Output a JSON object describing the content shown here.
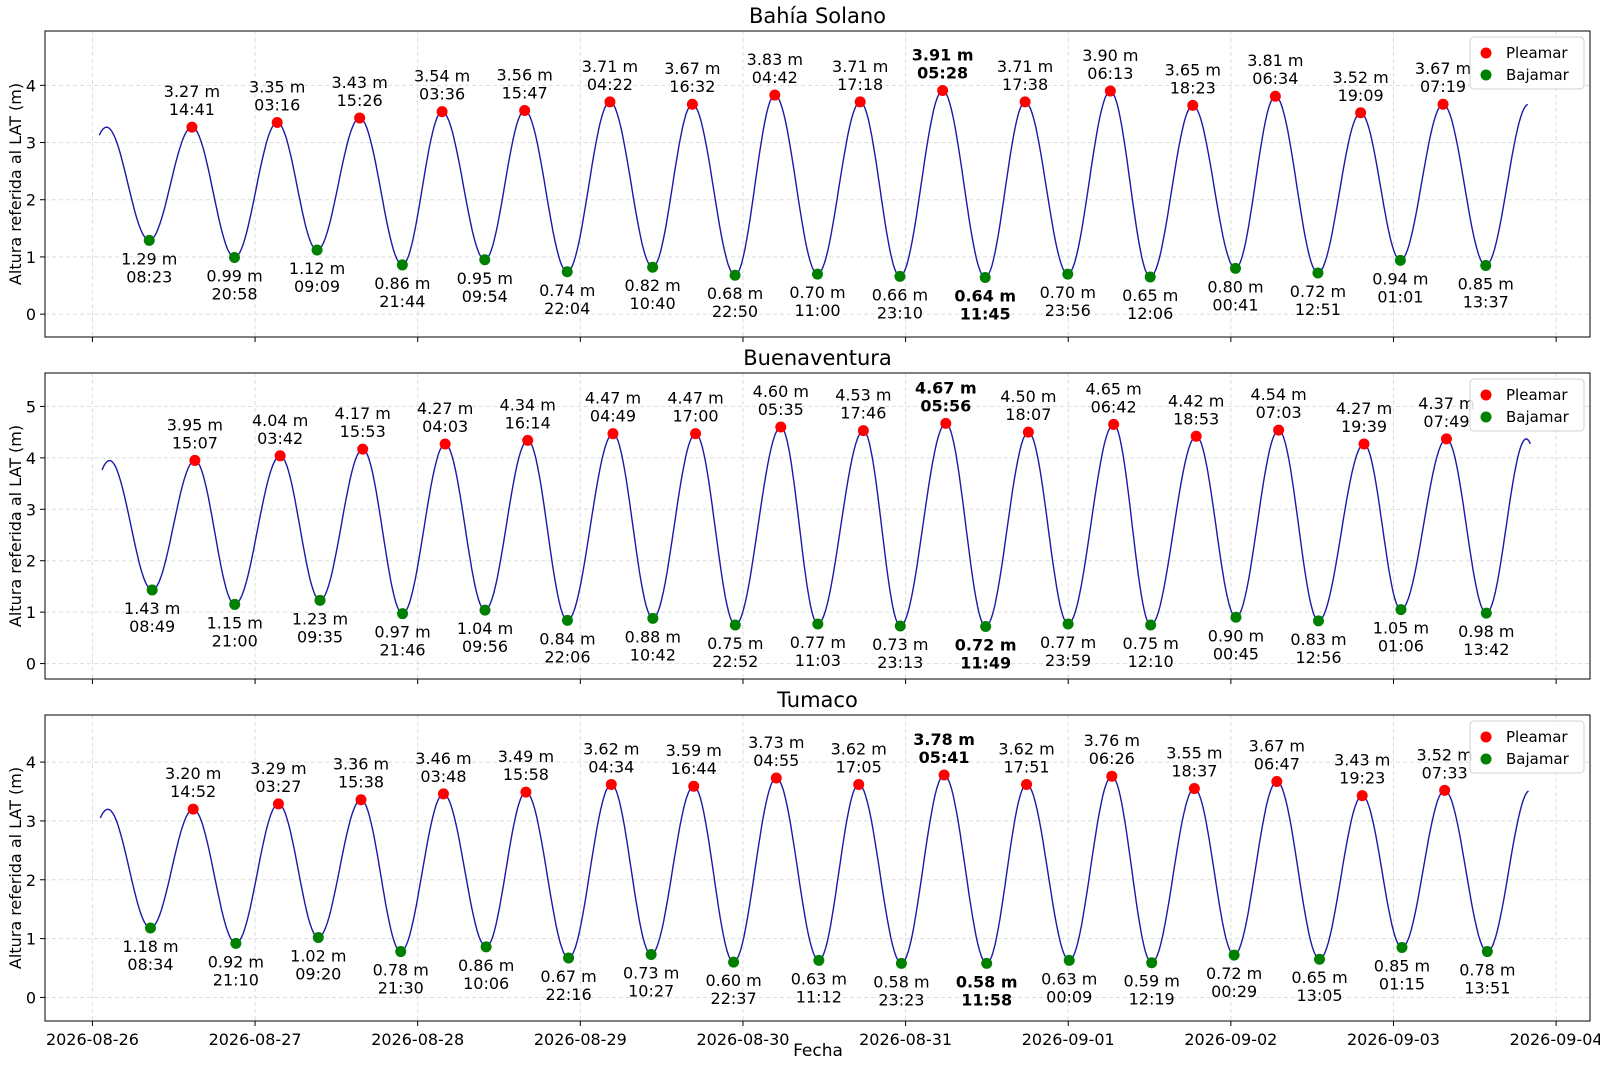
{
  "figure": {
    "xlabel": "Fecha",
    "ylabel": "Altura referida al LAT (m)",
    "x_ticks": [
      "2026-08-26",
      "2026-08-27",
      "2026-08-28",
      "2026-08-29",
      "2026-08-30",
      "2026-08-31",
      "2026-09-01",
      "2026-09-02",
      "2026-09-03",
      "2026-09-04"
    ],
    "legend": {
      "high_label": "Pleamar",
      "low_label": "Bajamar",
      "placement": "top-right"
    },
    "colors": {
      "curve": "#1a1aa6",
      "high": "#ff0000",
      "low": "#008000",
      "grid": "#dddddd"
    }
  },
  "chart_data": [
    {
      "type": "line",
      "title": "Bahía Solano",
      "ylabel": "Altura referida al LAT (m)",
      "ylim": [
        -0.4,
        4.95
      ],
      "yticks": [
        0,
        1,
        2,
        3,
        4
      ],
      "xlim": [
        "2026-08-25T17:00",
        "2026-09-04T05:00"
      ],
      "curve_start": {
        "t": "2026-08-26T01:00",
        "h": 3.15
      },
      "curve_end": {
        "t": "2026-09-03T19:48",
        "h": 3.37
      },
      "grid": true,
      "extrema": [
        {
          "kind": "low",
          "t": "2026-08-26T08:23",
          "h": 1.29,
          "label": "1.29 m",
          "time": "08:23"
        },
        {
          "kind": "high",
          "t": "2026-08-26T14:41",
          "h": 3.27,
          "label": "3.27 m",
          "time": "14:41"
        },
        {
          "kind": "low",
          "t": "2026-08-26T20:58",
          "h": 0.99,
          "label": "0.99 m",
          "time": "20:58"
        },
        {
          "kind": "high",
          "t": "2026-08-27T03:16",
          "h": 3.35,
          "label": "3.35 m",
          "time": "03:16"
        },
        {
          "kind": "low",
          "t": "2026-08-27T09:09",
          "h": 1.12,
          "label": "1.12 m",
          "time": "09:09"
        },
        {
          "kind": "high",
          "t": "2026-08-27T15:26",
          "h": 3.43,
          "label": "3.43 m",
          "time": "15:26"
        },
        {
          "kind": "low",
          "t": "2026-08-27T21:44",
          "h": 0.86,
          "label": "0.86 m",
          "time": "21:44"
        },
        {
          "kind": "high",
          "t": "2026-08-28T03:36",
          "h": 3.54,
          "label": "3.54 m",
          "time": "03:36"
        },
        {
          "kind": "low",
          "t": "2026-08-28T09:54",
          "h": 0.95,
          "label": "0.95 m",
          "time": "09:54"
        },
        {
          "kind": "high",
          "t": "2026-08-28T15:47",
          "h": 3.56,
          "label": "3.56 m",
          "time": "15:47"
        },
        {
          "kind": "low",
          "t": "2026-08-28T22:04",
          "h": 0.74,
          "label": "0.74 m",
          "time": "22:04"
        },
        {
          "kind": "high",
          "t": "2026-08-29T04:22",
          "h": 3.71,
          "label": "3.71 m",
          "time": "04:22"
        },
        {
          "kind": "low",
          "t": "2026-08-29T10:40",
          "h": 0.82,
          "label": "0.82 m",
          "time": "10:40"
        },
        {
          "kind": "high",
          "t": "2026-08-29T16:32",
          "h": 3.67,
          "label": "3.67 m",
          "time": "16:32"
        },
        {
          "kind": "low",
          "t": "2026-08-29T22:50",
          "h": 0.68,
          "label": "0.68 m",
          "time": "22:50"
        },
        {
          "kind": "high",
          "t": "2026-08-30T04:42",
          "h": 3.83,
          "label": "3.83 m",
          "time": "04:42"
        },
        {
          "kind": "low",
          "t": "2026-08-30T11:00",
          "h": 0.7,
          "label": "0.70 m",
          "time": "11:00"
        },
        {
          "kind": "high",
          "t": "2026-08-30T17:18",
          "h": 3.71,
          "label": "3.71 m",
          "time": "17:18"
        },
        {
          "kind": "low",
          "t": "2026-08-30T23:10",
          "h": 0.66,
          "label": "0.66 m",
          "time": "23:10"
        },
        {
          "kind": "high",
          "t": "2026-08-31T05:28",
          "h": 3.91,
          "label": "3.91 m",
          "time": "05:28",
          "bold": true
        },
        {
          "kind": "low",
          "t": "2026-08-31T11:45",
          "h": 0.64,
          "label": "0.64 m",
          "time": "11:45",
          "bold": true
        },
        {
          "kind": "high",
          "t": "2026-08-31T17:38",
          "h": 3.71,
          "label": "3.71 m",
          "time": "17:38"
        },
        {
          "kind": "low",
          "t": "2026-08-31T23:56",
          "h": 0.7,
          "label": "0.70 m",
          "time": "23:56"
        },
        {
          "kind": "high",
          "t": "2026-09-01T06:13",
          "h": 3.9,
          "label": "3.90 m",
          "time": "06:13"
        },
        {
          "kind": "low",
          "t": "2026-09-01T12:06",
          "h": 0.65,
          "label": "0.65 m",
          "time": "12:06"
        },
        {
          "kind": "high",
          "t": "2026-09-01T18:23",
          "h": 3.65,
          "label": "3.65 m",
          "time": "18:23"
        },
        {
          "kind": "low",
          "t": "2026-09-02T00:41",
          "h": 0.8,
          "label": "0.80 m",
          "time": "00:41"
        },
        {
          "kind": "high",
          "t": "2026-09-02T06:34",
          "h": 3.81,
          "label": "3.81 m",
          "time": "06:34"
        },
        {
          "kind": "low",
          "t": "2026-09-02T12:51",
          "h": 0.72,
          "label": "0.72 m",
          "time": "12:51"
        },
        {
          "kind": "high",
          "t": "2026-09-02T19:09",
          "h": 3.52,
          "label": "3.52 m",
          "time": "19:09"
        },
        {
          "kind": "low",
          "t": "2026-09-03T01:01",
          "h": 0.94,
          "label": "0.94 m",
          "time": "01:01"
        },
        {
          "kind": "high",
          "t": "2026-09-03T07:19",
          "h": 3.67,
          "label": "3.67 m",
          "time": "07:19"
        },
        {
          "kind": "low",
          "t": "2026-09-03T13:37",
          "h": 0.85,
          "label": "0.85 m",
          "time": "13:37"
        }
      ]
    },
    {
      "type": "line",
      "title": "Buenaventura",
      "ylabel": "Altura referida al LAT (m)",
      "ylim": [
        -0.3,
        5.65
      ],
      "yticks": [
        0,
        1,
        2,
        3,
        4,
        5
      ],
      "xlim": [
        "2026-08-25T17:00",
        "2026-09-04T05:00"
      ],
      "curve_start": {
        "t": "2026-08-26T01:25",
        "h": 3.8
      },
      "curve_end": {
        "t": "2026-09-03T20:13",
        "h": 4.05
      },
      "grid": true,
      "extrema": [
        {
          "kind": "low",
          "t": "2026-08-26T08:49",
          "h": 1.43,
          "label": "1.43 m",
          "time": "08:49"
        },
        {
          "kind": "high",
          "t": "2026-08-26T15:07",
          "h": 3.95,
          "label": "3.95 m",
          "time": "15:07"
        },
        {
          "kind": "low",
          "t": "2026-08-26T21:00",
          "h": 1.15,
          "label": "1.15 m",
          "time": "21:00"
        },
        {
          "kind": "high",
          "t": "2026-08-27T03:42",
          "h": 4.04,
          "label": "4.04 m",
          "time": "03:42"
        },
        {
          "kind": "low",
          "t": "2026-08-27T09:35",
          "h": 1.23,
          "label": "1.23 m",
          "time": "09:35"
        },
        {
          "kind": "high",
          "t": "2026-08-27T15:53",
          "h": 4.17,
          "label": "4.17 m",
          "time": "15:53"
        },
        {
          "kind": "low",
          "t": "2026-08-27T21:46",
          "h": 0.97,
          "label": "0.97 m",
          "time": "21:46"
        },
        {
          "kind": "high",
          "t": "2026-08-28T04:03",
          "h": 4.27,
          "label": "4.27 m",
          "time": "04:03"
        },
        {
          "kind": "low",
          "t": "2026-08-28T09:56",
          "h": 1.04,
          "label": "1.04 m",
          "time": "09:56"
        },
        {
          "kind": "high",
          "t": "2026-08-28T16:14",
          "h": 4.34,
          "label": "4.34 m",
          "time": "16:14"
        },
        {
          "kind": "low",
          "t": "2026-08-28T22:06",
          "h": 0.84,
          "label": "0.84 m",
          "time": "22:06"
        },
        {
          "kind": "high",
          "t": "2026-08-29T04:49",
          "h": 4.47,
          "label": "4.47 m",
          "time": "04:49"
        },
        {
          "kind": "low",
          "t": "2026-08-29T10:42",
          "h": 0.88,
          "label": "0.88 m",
          "time": "10:42"
        },
        {
          "kind": "high",
          "t": "2026-08-29T17:00",
          "h": 4.47,
          "label": "4.47 m",
          "time": "17:00"
        },
        {
          "kind": "low",
          "t": "2026-08-29T22:52",
          "h": 0.75,
          "label": "0.75 m",
          "time": "22:52"
        },
        {
          "kind": "high",
          "t": "2026-08-30T05:35",
          "h": 4.6,
          "label": "4.60 m",
          "time": "05:35"
        },
        {
          "kind": "low",
          "t": "2026-08-30T11:03",
          "h": 0.77,
          "label": "0.77 m",
          "time": "11:03"
        },
        {
          "kind": "high",
          "t": "2026-08-30T17:46",
          "h": 4.53,
          "label": "4.53 m",
          "time": "17:46"
        },
        {
          "kind": "low",
          "t": "2026-08-30T23:13",
          "h": 0.73,
          "label": "0.73 m",
          "time": "23:13"
        },
        {
          "kind": "high",
          "t": "2026-08-31T05:56",
          "h": 4.67,
          "label": "4.67 m",
          "time": "05:56",
          "bold": true
        },
        {
          "kind": "low",
          "t": "2026-08-31T11:49",
          "h": 0.72,
          "label": "0.72 m",
          "time": "11:49",
          "bold": true
        },
        {
          "kind": "high",
          "t": "2026-08-31T18:07",
          "h": 4.5,
          "label": "4.50 m",
          "time": "18:07"
        },
        {
          "kind": "low",
          "t": "2026-08-31T23:59",
          "h": 0.77,
          "label": "0.77 m",
          "time": "23:59"
        },
        {
          "kind": "high",
          "t": "2026-09-01T06:42",
          "h": 4.65,
          "label": "4.65 m",
          "time": "06:42"
        },
        {
          "kind": "low",
          "t": "2026-09-01T12:10",
          "h": 0.75,
          "label": "0.75 m",
          "time": "12:10"
        },
        {
          "kind": "high",
          "t": "2026-09-01T18:53",
          "h": 4.42,
          "label": "4.42 m",
          "time": "18:53"
        },
        {
          "kind": "low",
          "t": "2026-09-02T00:45",
          "h": 0.9,
          "label": "0.90 m",
          "time": "00:45"
        },
        {
          "kind": "high",
          "t": "2026-09-02T07:03",
          "h": 4.54,
          "label": "4.54 m",
          "time": "07:03"
        },
        {
          "kind": "low",
          "t": "2026-09-02T12:56",
          "h": 0.83,
          "label": "0.83 m",
          "time": "12:56"
        },
        {
          "kind": "high",
          "t": "2026-09-02T19:39",
          "h": 4.27,
          "label": "4.27 m",
          "time": "19:39"
        },
        {
          "kind": "low",
          "t": "2026-09-03T01:06",
          "h": 1.05,
          "label": "1.05 m",
          "time": "01:06"
        },
        {
          "kind": "high",
          "t": "2026-09-03T07:49",
          "h": 4.37,
          "label": "4.37 m",
          "time": "07:49"
        },
        {
          "kind": "low",
          "t": "2026-09-03T13:42",
          "h": 0.98,
          "label": "0.98 m",
          "time": "13:42"
        }
      ]
    },
    {
      "type": "line",
      "title": "Tumaco",
      "ylabel": "Altura referida al LAT (m)",
      "ylim": [
        -0.4,
        4.8
      ],
      "yticks": [
        0,
        1,
        2,
        3,
        4
      ],
      "xlim": [
        "2026-08-25T17:00",
        "2026-09-04T05:00"
      ],
      "curve_start": {
        "t": "2026-08-26T01:10",
        "h": 3.1
      },
      "curve_end": {
        "t": "2026-09-03T19:55",
        "h": 3.27
      },
      "grid": true,
      "extrema": [
        {
          "kind": "low",
          "t": "2026-08-26T08:34",
          "h": 1.18,
          "label": "1.18 m",
          "time": "08:34"
        },
        {
          "kind": "high",
          "t": "2026-08-26T14:52",
          "h": 3.2,
          "label": "3.20 m",
          "time": "14:52"
        },
        {
          "kind": "low",
          "t": "2026-08-26T21:10",
          "h": 0.92,
          "label": "0.92 m",
          "time": "21:10"
        },
        {
          "kind": "high",
          "t": "2026-08-27T03:27",
          "h": 3.29,
          "label": "3.29 m",
          "time": "03:27"
        },
        {
          "kind": "low",
          "t": "2026-08-27T09:20",
          "h": 1.02,
          "label": "1.02 m",
          "time": "09:20"
        },
        {
          "kind": "high",
          "t": "2026-08-27T15:38",
          "h": 3.36,
          "label": "3.36 m",
          "time": "15:38"
        },
        {
          "kind": "low",
          "t": "2026-08-27T21:30",
          "h": 0.78,
          "label": "0.78 m",
          "time": "21:30"
        },
        {
          "kind": "high",
          "t": "2026-08-28T03:48",
          "h": 3.46,
          "label": "3.46 m",
          "time": "03:48"
        },
        {
          "kind": "low",
          "t": "2026-08-28T10:06",
          "h": 0.86,
          "label": "0.86 m",
          "time": "10:06"
        },
        {
          "kind": "high",
          "t": "2026-08-28T15:58",
          "h": 3.49,
          "label": "3.49 m",
          "time": "15:58"
        },
        {
          "kind": "low",
          "t": "2026-08-28T22:16",
          "h": 0.67,
          "label": "0.67 m",
          "time": "22:16"
        },
        {
          "kind": "high",
          "t": "2026-08-29T04:34",
          "h": 3.62,
          "label": "3.62 m",
          "time": "04:34"
        },
        {
          "kind": "low",
          "t": "2026-08-29T10:27",
          "h": 0.73,
          "label": "0.73 m",
          "time": "10:27"
        },
        {
          "kind": "high",
          "t": "2026-08-29T16:44",
          "h": 3.59,
          "label": "3.59 m",
          "time": "16:44"
        },
        {
          "kind": "low",
          "t": "2026-08-29T22:37",
          "h": 0.6,
          "label": "0.60 m",
          "time": "22:37"
        },
        {
          "kind": "high",
          "t": "2026-08-30T04:55",
          "h": 3.73,
          "label": "3.73 m",
          "time": "04:55"
        },
        {
          "kind": "low",
          "t": "2026-08-30T11:12",
          "h": 0.63,
          "label": "0.63 m",
          "time": "11:12"
        },
        {
          "kind": "high",
          "t": "2026-08-30T17:05",
          "h": 3.62,
          "label": "3.62 m",
          "time": "17:05"
        },
        {
          "kind": "low",
          "t": "2026-08-30T23:23",
          "h": 0.58,
          "label": "0.58 m",
          "time": "23:23"
        },
        {
          "kind": "high",
          "t": "2026-08-31T05:41",
          "h": 3.78,
          "label": "3.78 m",
          "time": "05:41",
          "bold": true
        },
        {
          "kind": "low",
          "t": "2026-08-31T11:58",
          "h": 0.58,
          "label": "0.58 m",
          "time": "11:58",
          "bold": true
        },
        {
          "kind": "high",
          "t": "2026-08-31T17:51",
          "h": 3.62,
          "label": "3.62 m",
          "time": "17:51"
        },
        {
          "kind": "low",
          "t": "2026-09-01T00:09",
          "h": 0.63,
          "label": "0.63 m",
          "time": "00:09"
        },
        {
          "kind": "high",
          "t": "2026-09-01T06:26",
          "h": 3.76,
          "label": "3.76 m",
          "time": "06:26"
        },
        {
          "kind": "low",
          "t": "2026-09-01T12:19",
          "h": 0.59,
          "label": "0.59 m",
          "time": "12:19"
        },
        {
          "kind": "high",
          "t": "2026-09-01T18:37",
          "h": 3.55,
          "label": "3.55 m",
          "time": "18:37"
        },
        {
          "kind": "low",
          "t": "2026-09-02T00:29",
          "h": 0.72,
          "label": "0.72 m",
          "time": "00:29"
        },
        {
          "kind": "high",
          "t": "2026-09-02T06:47",
          "h": 3.67,
          "label": "3.67 m",
          "time": "06:47"
        },
        {
          "kind": "low",
          "t": "2026-09-02T13:05",
          "h": 0.65,
          "label": "0.65 m",
          "time": "13:05"
        },
        {
          "kind": "high",
          "t": "2026-09-02T19:23",
          "h": 3.43,
          "label": "3.43 m",
          "time": "19:23"
        },
        {
          "kind": "low",
          "t": "2026-09-03T01:15",
          "h": 0.85,
          "label": "0.85 m",
          "time": "01:15"
        },
        {
          "kind": "high",
          "t": "2026-09-03T07:33",
          "h": 3.52,
          "label": "3.52 m",
          "time": "07:33"
        },
        {
          "kind": "low",
          "t": "2026-09-03T13:51",
          "h": 0.78,
          "label": "0.78 m",
          "time": "13:51"
        }
      ]
    }
  ]
}
